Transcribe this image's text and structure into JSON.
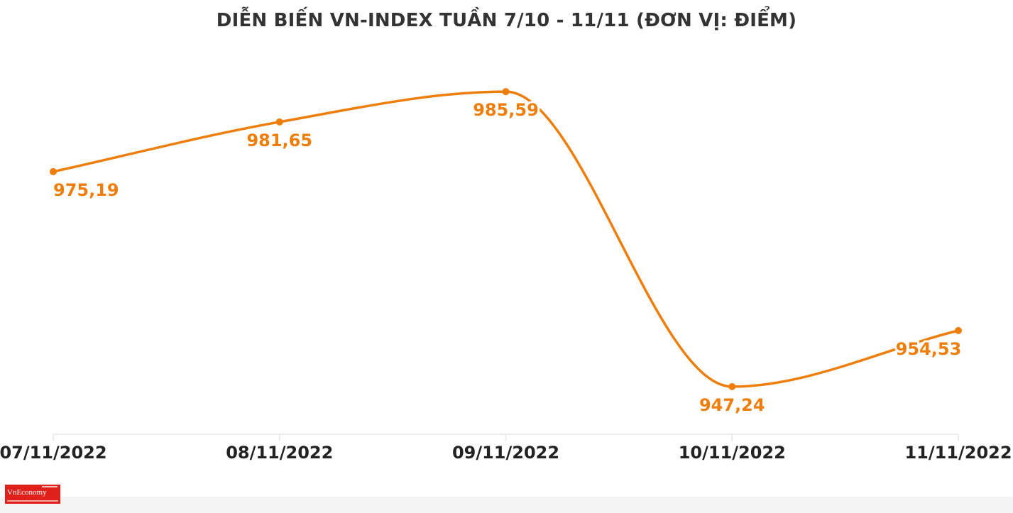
{
  "chart_data": {
    "type": "line",
    "title": "DIỄN BIẾN VN-INDEX TUẦN 7/10 - 11/11 (ĐƠN VỊ: ĐIỂM)",
    "xlabel": "",
    "ylabel": "",
    "categories": [
      "07/11/2022",
      "08/11/2022",
      "09/11/2022",
      "10/11/2022",
      "11/11/2022"
    ],
    "series": [
      {
        "values": [
          975.19,
          981.65,
          985.59,
          947.24,
          954.53
        ],
        "data_labels": [
          "975,19",
          "981,65",
          "985,59",
          "947,24",
          "954,53"
        ],
        "color": "#ee7e0b"
      }
    ],
    "ylim": [
      941.05,
      988.28
    ],
    "grid": false,
    "smooth": true,
    "legend": "none"
  },
  "logo": {
    "text": "VnEconomy",
    "color": "#e0201b"
  }
}
